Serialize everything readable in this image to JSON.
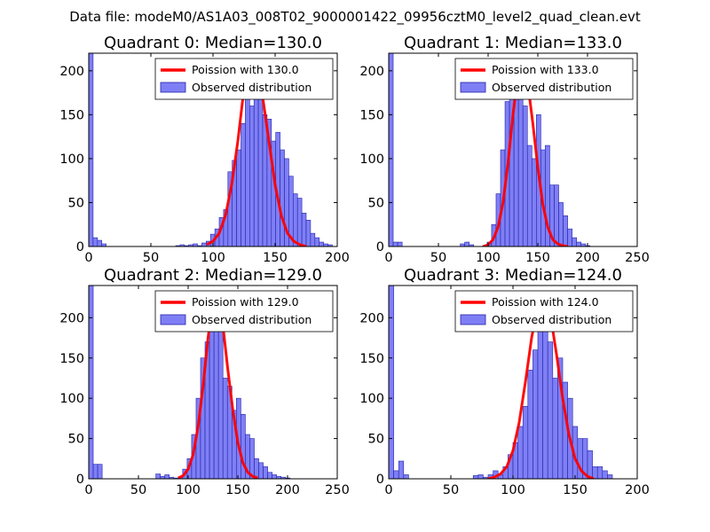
{
  "figure_title": "Data file: modeM0/AS1A03_008T02_9000001422_09956cztM0_level2_quad_clean.evt",
  "colors": {
    "bar_fill": "#7f7ff5",
    "bar_edge": "#2222aa",
    "line": "#ff0000",
    "axes": "#000000",
    "background": "#ffffff"
  },
  "chart_data": [
    {
      "type": "bar",
      "title": "Quadrant 0: Median=130.0",
      "median": 130.0,
      "xlim": [
        0,
        200
      ],
      "ylim": [
        0,
        220
      ],
      "xticks": [
        0,
        50,
        100,
        150,
        200
      ],
      "yticks": [
        0,
        50,
        100,
        150,
        200
      ],
      "legend": {
        "line_label": "Poission with 130.0",
        "bar_label": "Observed distribution",
        "placement": "top-right"
      },
      "bin_width": 3.5,
      "bins_x": [
        0,
        3.5,
        7,
        10.5,
        14,
        17.5,
        21,
        24.5,
        28,
        31.5,
        35,
        38.5,
        42,
        45.5,
        49,
        52.5,
        56,
        59.5,
        63,
        66.5,
        70,
        73.5,
        77,
        80.5,
        84,
        87.5,
        91,
        94.5,
        98,
        101.5,
        105,
        108.5,
        112,
        115.5,
        119,
        122.5,
        126,
        129.5,
        133,
        136.5,
        140,
        143.5,
        147,
        150.5,
        154,
        157.5,
        161,
        164.5,
        168,
        171.5,
        175,
        178.5,
        182,
        185.5,
        189,
        192.5,
        196
      ],
      "bins_y": [
        220,
        10,
        7,
        3,
        0,
        0,
        0,
        0,
        0,
        0,
        0,
        0,
        0,
        0,
        0,
        0,
        0,
        0,
        0,
        0,
        1,
        2,
        1,
        2,
        3,
        1,
        4,
        6,
        14,
        20,
        33,
        42,
        85,
        98,
        110,
        140,
        170,
        160,
        200,
        185,
        150,
        145,
        120,
        130,
        110,
        100,
        80,
        60,
        55,
        38,
        30,
        15,
        10,
        5,
        3,
        2,
        0
      ],
      "curve_x": [
        95,
        100,
        105,
        110,
        115,
        120,
        125,
        130,
        135,
        140,
        145,
        150,
        155,
        160,
        165,
        170,
        175
      ],
      "curve_y": [
        2,
        6,
        15,
        35,
        70,
        120,
        180,
        210,
        205,
        170,
        120,
        70,
        35,
        15,
        6,
        2,
        0
      ]
    },
    {
      "type": "bar",
      "title": "Quadrant 1: Median=133.0",
      "median": 133.0,
      "xlim": [
        0,
        250
      ],
      "ylim": [
        0,
        220
      ],
      "xticks": [
        0,
        50,
        100,
        150,
        200,
        250
      ],
      "yticks": [
        0,
        50,
        100,
        150,
        200
      ],
      "legend": {
        "line_label": "Poission with 133.0",
        "bar_label": "Observed distribution",
        "placement": "top-right"
      },
      "bin_width": 4.5,
      "bins_x": [
        0,
        4.5,
        9,
        13.5,
        18,
        22.5,
        27,
        31.5,
        36,
        40.5,
        45,
        49.5,
        54,
        58.5,
        63,
        67.5,
        72,
        76.5,
        81,
        85.5,
        90,
        94.5,
        99,
        103.5,
        108,
        112.5,
        117,
        121.5,
        126,
        130.5,
        135,
        139.5,
        144,
        148.5,
        153,
        157.5,
        162,
        166.5,
        171,
        175.5,
        180,
        184.5,
        189,
        193.5,
        198,
        202.5,
        207
      ],
      "bins_y": [
        220,
        5,
        5,
        0,
        0,
        0,
        0,
        0,
        0,
        0,
        0,
        0,
        0,
        0,
        0,
        0,
        3,
        5,
        2,
        0,
        0,
        1,
        5,
        25,
        60,
        110,
        165,
        200,
        170,
        190,
        160,
        115,
        100,
        150,
        110,
        115,
        70,
        70,
        50,
        35,
        20,
        10,
        5,
        3,
        1,
        0,
        0
      ],
      "curve_x": [
        95,
        100,
        105,
        110,
        115,
        120,
        125,
        130,
        135,
        140,
        145,
        150,
        155,
        160,
        165,
        170,
        175,
        180
      ],
      "curve_y": [
        0,
        2,
        8,
        22,
        50,
        95,
        150,
        195,
        208,
        185,
        140,
        90,
        48,
        22,
        8,
        3,
        1,
        0
      ]
    },
    {
      "type": "bar",
      "title": "Quadrant 2: Median=129.0",
      "median": 129.0,
      "xlim": [
        0,
        250
      ],
      "ylim": [
        0,
        240
      ],
      "xticks": [
        0,
        50,
        100,
        150,
        200,
        250
      ],
      "yticks": [
        0,
        50,
        100,
        150,
        200
      ],
      "legend": {
        "line_label": "Poission with 129.0",
        "bar_label": "Observed distribution",
        "placement": "top-right"
      },
      "bin_width": 4.5,
      "bins_x": [
        0,
        4.5,
        9,
        13.5,
        18,
        22.5,
        27,
        31.5,
        36,
        40.5,
        45,
        49.5,
        54,
        58.5,
        63,
        67.5,
        72,
        76.5,
        81,
        85.5,
        90,
        94.5,
        99,
        103.5,
        108,
        112.5,
        117,
        121.5,
        126,
        130.5,
        135,
        139.5,
        144,
        148.5,
        153,
        157.5,
        162,
        166.5,
        171,
        175.5,
        180,
        184.5,
        189,
        193.5,
        198,
        202.5
      ],
      "bins_y": [
        240,
        18,
        18,
        0,
        0,
        0,
        0,
        0,
        0,
        0,
        0,
        0,
        0,
        0,
        0,
        6,
        3,
        5,
        2,
        1,
        2,
        12,
        25,
        55,
        100,
        150,
        170,
        230,
        200,
        190,
        125,
        115,
        85,
        100,
        80,
        55,
        50,
        25,
        20,
        15,
        8,
        5,
        3,
        2,
        1,
        0
      ],
      "curve_x": [
        90,
        95,
        100,
        105,
        110,
        115,
        120,
        125,
        130,
        135,
        140,
        145,
        150,
        155,
        160,
        165,
        170
      ],
      "curve_y": [
        1,
        4,
        12,
        30,
        65,
        115,
        175,
        220,
        225,
        190,
        135,
        85,
        45,
        20,
        8,
        3,
        1
      ]
    },
    {
      "type": "bar",
      "title": "Quadrant 3: Median=124.0",
      "median": 124.0,
      "xlim": [
        0,
        200
      ],
      "ylim": [
        0,
        240
      ],
      "xticks": [
        0,
        50,
        100,
        150,
        200
      ],
      "yticks": [
        0,
        50,
        100,
        150,
        200
      ],
      "legend": {
        "line_label": "Poission with 124.0",
        "bar_label": "Observed distribution",
        "placement": "top-right"
      },
      "bin_width": 4,
      "bins_x": [
        0,
        4,
        8,
        12,
        16,
        20,
        24,
        28,
        32,
        36,
        40,
        44,
        48,
        52,
        56,
        60,
        64,
        68,
        72,
        76,
        80,
        84,
        88,
        92,
        96,
        100,
        104,
        108,
        112,
        116,
        120,
        124,
        128,
        132,
        136,
        140,
        144,
        148,
        152,
        156,
        160,
        164,
        168,
        172,
        176,
        180,
        184
      ],
      "bins_y": [
        240,
        10,
        22,
        5,
        0,
        0,
        0,
        0,
        0,
        0,
        0,
        0,
        0,
        0,
        0,
        0,
        0,
        4,
        5,
        2,
        5,
        10,
        5,
        15,
        30,
        45,
        65,
        90,
        135,
        160,
        220,
        205,
        170,
        125,
        150,
        120,
        100,
        65,
        50,
        50,
        35,
        15,
        15,
        10,
        5,
        0,
        0
      ],
      "curve_x": [
        80,
        85,
        90,
        95,
        100,
        105,
        110,
        115,
        120,
        125,
        130,
        135,
        140,
        145,
        150,
        155,
        160,
        165
      ],
      "curve_y": [
        0,
        2,
        6,
        15,
        35,
        70,
        120,
        175,
        215,
        228,
        205,
        155,
        100,
        55,
        25,
        10,
        3,
        0
      ]
    }
  ]
}
